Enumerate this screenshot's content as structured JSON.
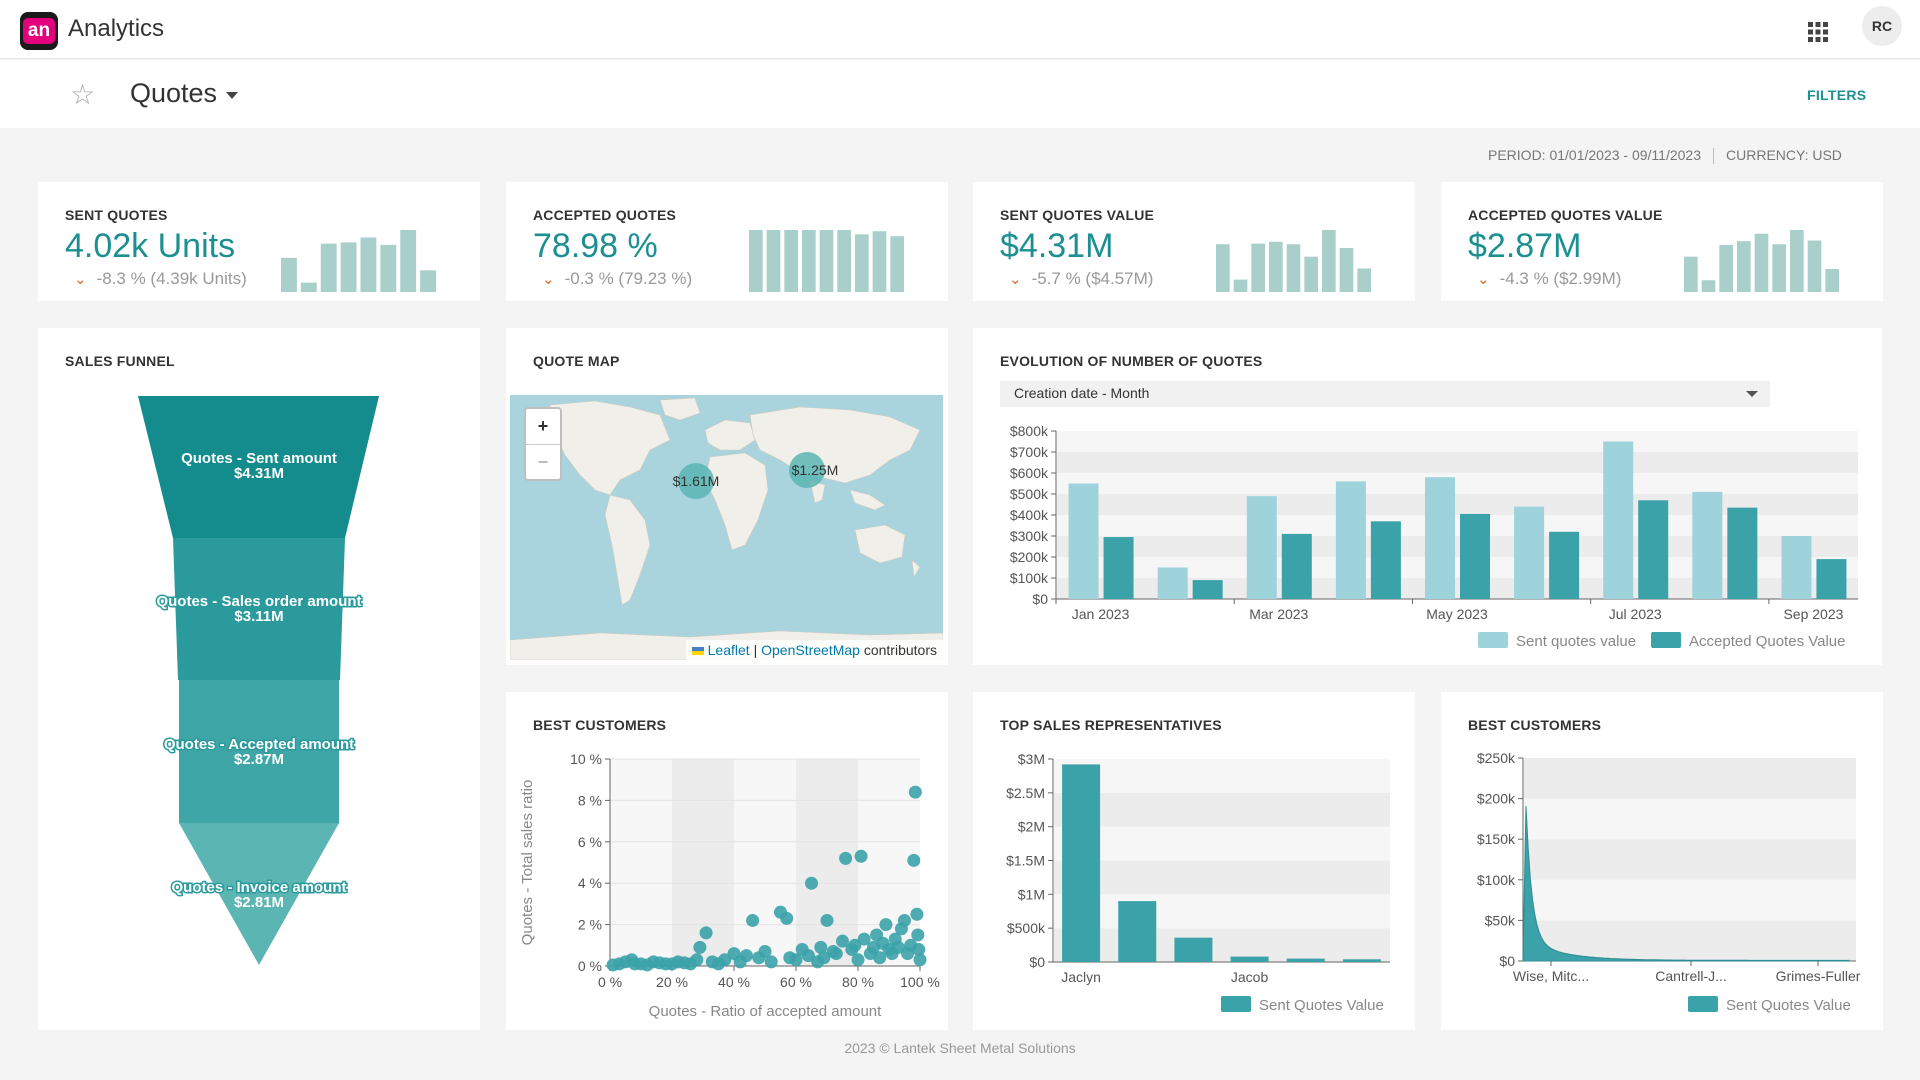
{
  "header": {
    "logo_text": "an",
    "app_title": "Analytics",
    "apps_icon": "apps-grid-icon",
    "avatar_initials": "RC"
  },
  "page": {
    "title": "Quotes",
    "filters_label": "FILTERS",
    "period": "PERIOD: 01/01/2023 - 09/11/2023",
    "currency": "CURRENCY: USD"
  },
  "kpis": [
    {
      "title": "SENT QUOTES",
      "value": "4.02k Units",
      "delta": "-8.3 % (4.39k Units)",
      "sparkline": [
        0.55,
        0.15,
        0.78,
        0.8,
        0.88,
        0.76,
        1.0,
        0.35
      ]
    },
    {
      "title": "ACCEPTED QUOTES",
      "value": "78.98 %",
      "delta": "-0.3 % (79.23 %)",
      "sparkline": [
        1.0,
        1.0,
        1.0,
        1.0,
        1.0,
        1.0,
        0.93,
        0.98,
        0.9
      ]
    },
    {
      "title": "SENT QUOTES VALUE",
      "value": "$4.31M",
      "delta": "-5.7 % ($4.57M)",
      "sparkline": [
        0.77,
        0.2,
        0.78,
        0.81,
        0.77,
        0.57,
        1.0,
        0.71,
        0.38
      ]
    },
    {
      "title": "ACCEPTED QUOTES VALUE",
      "value": "$2.87M",
      "delta": "-4.3 % ($2.99M)",
      "sparkline": [
        0.57,
        0.19,
        0.76,
        0.82,
        0.94,
        0.77,
        1.0,
        0.83,
        0.37
      ]
    }
  ],
  "funnel": {
    "title": "SALES FUNNEL",
    "stages": [
      {
        "label": "Quotes - Sent amount",
        "value": "$4.31M",
        "color": "#148c8e"
      },
      {
        "label": "Quotes - Sales order amount",
        "value": "$3.11M",
        "color": "#2a9a9c"
      },
      {
        "label": "Quotes - Accepted amount",
        "value": "$2.87M",
        "color": "#3ea6a6"
      },
      {
        "label": "Quotes - Invoice amount",
        "value": "$2.81M",
        "color": "#5ab5b3"
      }
    ]
  },
  "map": {
    "title": "QUOTE MAP",
    "zoom_in": "+",
    "zoom_out": "−",
    "markers": [
      {
        "label": "$1.61M"
      },
      {
        "label": "$1.25M"
      }
    ],
    "attribution": {
      "leaflet": "Leaflet",
      "sep": " | ",
      "osm": "OpenStreetMap",
      "suffix": " contributors"
    }
  },
  "evolution": {
    "title": "EVOLUTION OF NUMBER OF QUOTES",
    "dropdown_value": "Creation date - Month"
  },
  "best_customers_scatter": {
    "title": "BEST CUSTOMERS"
  },
  "top_sales": {
    "title": "TOP SALES REPRESENTATIVES"
  },
  "best_customers_area": {
    "title": "BEST CUSTOMERS"
  },
  "footer": "2023 © Lantek Sheet Metal Solutions",
  "chart_data": [
    {
      "type": "bar",
      "categories": [
        "Jan 2023",
        "Feb 2023",
        "Mar 2023",
        "Apr 2023",
        "May 2023",
        "Jun 2023",
        "Jul 2023",
        "Aug 2023",
        "Sep 2023"
      ],
      "tick_labels": [
        "Jan 2023",
        "Mar 2023",
        "May 2023",
        "Jul 2023",
        "Sep 2023"
      ],
      "yticks": [
        "$0",
        "$100k",
        "$200k",
        "$300k",
        "$400k",
        "$500k",
        "$600k",
        "$700k",
        "$800k"
      ],
      "ylim": [
        0,
        800000
      ],
      "series": [
        {
          "name": "Sent quotes value",
          "color": "#9fd3dc",
          "values": [
            550000,
            150000,
            490000,
            560000,
            580000,
            440000,
            750000,
            510000,
            300000
          ]
        },
        {
          "name": "Accepted Quotes Value",
          "color": "#3aa2a8",
          "values": [
            295000,
            90000,
            310000,
            370000,
            405000,
            320000,
            470000,
            435000,
            190000
          ]
        }
      ],
      "legend": "bottom-right"
    },
    {
      "type": "scatter",
      "xlabel": "Quotes - Ratio of accepted amount",
      "ylabel": "Quotes - Total sales ratio",
      "xticks": [
        "0 %",
        "20 %",
        "40 %",
        "60 %",
        "80 %",
        "100 %"
      ],
      "yticks": [
        "0 %",
        "2 %",
        "4 %",
        "6 %",
        "8 %",
        "10 %"
      ],
      "xlim": [
        0,
        100
      ],
      "ylim": [
        0,
        10
      ],
      "points": [
        [
          1,
          0.05
        ],
        [
          3,
          0.1
        ],
        [
          5,
          0.2
        ],
        [
          7,
          0.3
        ],
        [
          8,
          0.1
        ],
        [
          10,
          0.1
        ],
        [
          12,
          0.05
        ],
        [
          14,
          0.2
        ],
        [
          16,
          0.15
        ],
        [
          18,
          0.1
        ],
        [
          20,
          0.1
        ],
        [
          22,
          0.2
        ],
        [
          24,
          0.15
        ],
        [
          26,
          0.1
        ],
        [
          28,
          0.3
        ],
        [
          29,
          0.9
        ],
        [
          31,
          1.6
        ],
        [
          33,
          0.2
        ],
        [
          35,
          0.1
        ],
        [
          37,
          0.3
        ],
        [
          40,
          0.6
        ],
        [
          42,
          0.2
        ],
        [
          44,
          0.5
        ],
        [
          46,
          2.2
        ],
        [
          48,
          0.4
        ],
        [
          50,
          0.7
        ],
        [
          52,
          0.2
        ],
        [
          55,
          2.6
        ],
        [
          57,
          2.3
        ],
        [
          58,
          0.4
        ],
        [
          60,
          0.3
        ],
        [
          62,
          0.8
        ],
        [
          64,
          0.5
        ],
        [
          65,
          4.0
        ],
        [
          67,
          0.2
        ],
        [
          68,
          0.9
        ],
        [
          69,
          0.4
        ],
        [
          70,
          2.2
        ],
        [
          72,
          0.7
        ],
        [
          73,
          0.6
        ],
        [
          75,
          1.2
        ],
        [
          76,
          5.2
        ],
        [
          78,
          0.8
        ],
        [
          79,
          1.0
        ],
        [
          80,
          0.3
        ],
        [
          81,
          5.3
        ],
        [
          82,
          1.3
        ],
        [
          84,
          0.6
        ],
        [
          85,
          0.9
        ],
        [
          86,
          1.5
        ],
        [
          87,
          0.4
        ],
        [
          88,
          1.1
        ],
        [
          89,
          2.0
        ],
        [
          90,
          0.8
        ],
        [
          91,
          0.6
        ],
        [
          92,
          1.3
        ],
        [
          93,
          0.9
        ],
        [
          94,
          1.8
        ],
        [
          95,
          2.2
        ],
        [
          96,
          0.6
        ],
        [
          97,
          1.0
        ],
        [
          98,
          5.1
        ],
        [
          98.5,
          8.4
        ],
        [
          99,
          2.5
        ],
        [
          99.3,
          1.5
        ],
        [
          99.6,
          0.8
        ],
        [
          100,
          0.3
        ]
      ]
    },
    {
      "type": "bar",
      "categories": [
        "Jaclyn",
        "",
        "",
        "Jacob",
        "",
        ""
      ],
      "yticks": [
        "$0",
        "$500k",
        "$1M",
        "$1.5M",
        "$2M",
        "$2.5M",
        "$3M"
      ],
      "ylim": [
        0,
        3000000
      ],
      "series": [
        {
          "name": "Sent Quotes Value",
          "color": "#3aa2a8",
          "values": [
            2920000,
            900000,
            360000,
            80000,
            50000,
            40000
          ]
        }
      ],
      "legend": "bottom-right"
    },
    {
      "type": "area",
      "tick_labels": [
        "Wise, Mitc...",
        "Cantrell-J...",
        "Grimes-Fuller"
      ],
      "yticks": [
        "$0",
        "$50k",
        "$100k",
        "$150k",
        "$200k",
        "$250k"
      ],
      "ylim": [
        0,
        250000
      ],
      "series": [
        {
          "name": "Sent Quotes Value",
          "color": "#3aa2a8"
        }
      ],
      "legend": "bottom-right"
    }
  ]
}
